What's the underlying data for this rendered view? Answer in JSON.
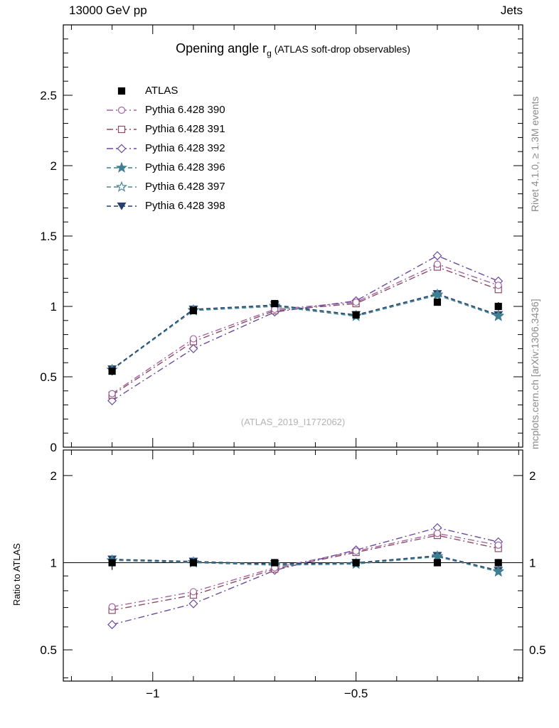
{
  "header": {
    "left": "13000 GeV pp",
    "right": "Jets"
  },
  "title": {
    "main": "Opening angle r",
    "sub": "g",
    "note": " (ATLAS soft-drop observables)"
  },
  "watermark": "(ATLAS_2019_I1772062)",
  "side_notes": {
    "top": "Rivet 4.1.0, ≥ 1.3M events",
    "bottom": "mcplots.cern.ch [arXiv:1306.3436]"
  },
  "ratio_label": "Ratio to ATLAS",
  "chart_data": {
    "type": "line",
    "title": "Opening angle r_g (ATLAS soft-drop observables)",
    "xlabel": "",
    "ylabel": "",
    "x": [
      -1.1,
      -0.9,
      -0.7,
      -0.5,
      -0.3,
      -0.15
    ],
    "xlim": [
      -1.22,
      -0.09
    ],
    "main_ylim": [
      0,
      3.0
    ],
    "ratio_ylim": [
      0.39,
      2.45
    ],
    "ratio_scale": "log",
    "x_major_ticks": [
      -1,
      -0.5
    ],
    "x_tick_labels": [
      "−1",
      "−0.5"
    ],
    "main_yticks": [
      0,
      0.5,
      1,
      1.5,
      2,
      2.5
    ],
    "main_ytick_labels": [
      "0",
      "0.5",
      "1",
      "1.5",
      "2",
      "2.5"
    ],
    "ratio_yticks": [
      0.5,
      1,
      2
    ],
    "ratio_ytick_labels": [
      "0.5",
      "1",
      "2"
    ],
    "ratio_minor_ticks": [
      0.4,
      0.6,
      0.7,
      0.8,
      0.9
    ],
    "series": [
      {
        "label": "ATLAS",
        "color": "#000000",
        "marker": "square",
        "filled": true,
        "linestyle": "none",
        "values": [
          0.54,
          0.97,
          1.02,
          0.94,
          1.03,
          1.0
        ],
        "errors": [
          0.03,
          0.02,
          0.02,
          0.02,
          0.02,
          0.03
        ]
      },
      {
        "label": "Pythia 6.428 390",
        "color": "#a264a2",
        "marker": "circle",
        "filled": false,
        "linestyle": "dashdot",
        "values": [
          0.38,
          0.77,
          0.98,
          1.03,
          1.3,
          1.15
        ]
      },
      {
        "label": "Pythia 6.428 391",
        "color": "#8e4a62",
        "marker": "square",
        "filled": false,
        "linestyle": "dashdot",
        "values": [
          0.37,
          0.75,
          0.97,
          1.02,
          1.28,
          1.12
        ]
      },
      {
        "label": "Pythia 6.428 392",
        "color": "#6a4a9e",
        "marker": "diamond",
        "filled": false,
        "linestyle": "dashdot",
        "values": [
          0.33,
          0.7,
          0.96,
          1.04,
          1.36,
          1.18
        ]
      },
      {
        "label": "Pythia 6.428 396",
        "color": "#3f7f92",
        "marker": "star",
        "filled": true,
        "linestyle": "dashed",
        "values": [
          0.55,
          0.97,
          1.0,
          0.93,
          1.08,
          0.93
        ]
      },
      {
        "label": "Pythia 6.428 397",
        "color": "#4a8a94",
        "marker": "star",
        "filled": false,
        "linestyle": "dashed",
        "values": [
          0.55,
          0.975,
          1.005,
          0.935,
          1.085,
          0.935
        ]
      },
      {
        "label": "Pythia 6.428 398",
        "color": "#2a3f6e",
        "marker": "triangle-down",
        "filled": true,
        "linestyle": "dashed",
        "values": [
          0.555,
          0.98,
          1.01,
          0.94,
          1.09,
          0.94
        ]
      }
    ]
  }
}
